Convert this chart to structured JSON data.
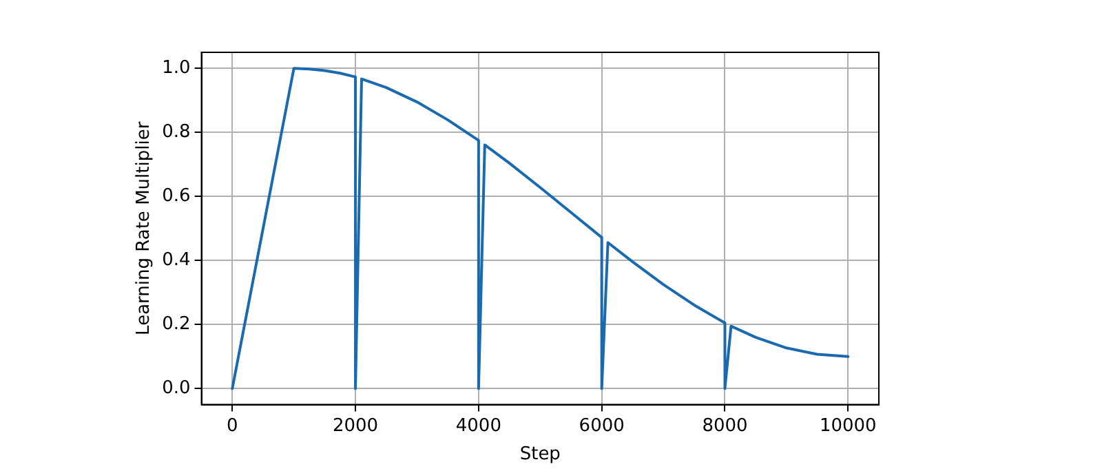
{
  "chart_data": {
    "type": "line",
    "xlabel": "Step",
    "ylabel": "Learning Rate Multiplier",
    "x": [
      0,
      1000,
      1250,
      1500,
      1750,
      2000,
      2000,
      2100,
      2500,
      3000,
      3500,
      4000,
      4000,
      4100,
      4500,
      5000,
      5500,
      6000,
      6000,
      6100,
      6500,
      7000,
      7500,
      8000,
      8000,
      8100,
      8500,
      9000,
      9500,
      10000
    ],
    "series": [
      {
        "color": "#1a6ab0",
        "values": [
          0,
          1,
          0.998,
          0.993,
          0.985,
          0.973,
          0,
          0.967,
          0.94,
          0.895,
          0.839,
          0.775,
          0,
          0.761,
          0.704,
          0.628,
          0.55,
          0.472,
          0,
          0.456,
          0.396,
          0.325,
          0.261,
          0.205,
          0,
          0.195,
          0.16,
          0.127,
          0.107,
          0.1
        ]
      }
    ],
    "xlim": [
      -500,
      10500
    ],
    "ylim": [
      -0.05,
      1.05
    ],
    "xticks": [
      0,
      2000,
      4000,
      6000,
      8000,
      10000
    ],
    "yticks": [
      {
        "value": 0,
        "label": "0.0"
      },
      {
        "value": 0.2,
        "label": "0.2"
      },
      {
        "value": 0.4,
        "label": "0.4"
      },
      {
        "value": 0.6,
        "label": "0.6"
      },
      {
        "value": 0.8,
        "label": "0.8"
      },
      {
        "value": 1,
        "label": "1.0"
      }
    ],
    "grid": true,
    "legend": false,
    "marker": "none",
    "line_style": "solid"
  }
}
